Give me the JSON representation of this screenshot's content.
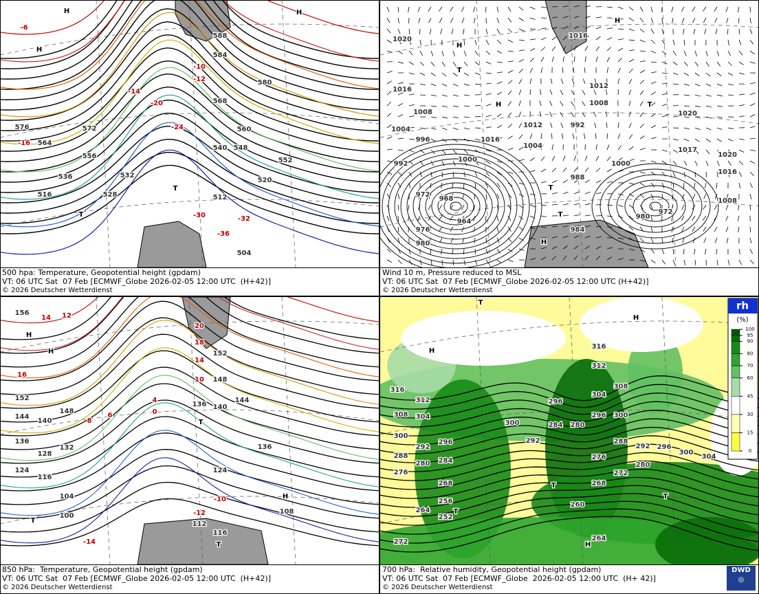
{
  "panels": [
    {
      "caption": {
        "line1": "500 hpa: Temperature, Geopotential height (gpdam)",
        "line2": "VT: 06 UTC Sat  07 Feb [ECMWF_Globe 2026-02-05 12:00 UTC  (H+42)]",
        "copyright": "© 2026 Deutscher Wetterdienst"
      },
      "height_labels": [
        "588",
        "584",
        "580",
        "576",
        "572",
        "568",
        "564",
        "560",
        "556",
        "552",
        "548",
        "540",
        "536",
        "532",
        "528",
        "520",
        "516",
        "512",
        "504"
      ],
      "temperature_labels": [
        "-10",
        "-12",
        "-20",
        "-24",
        "-30",
        "-32",
        "-36",
        "-6",
        "-14",
        "-16"
      ],
      "centers": [
        "H",
        "T",
        "T",
        "H",
        "H"
      ]
    },
    {
      "caption": {
        "line1": "Wind 10 m, Pressure reduced to MSL",
        "line2": "VT: 06 UTC Sat  07 Feb [ECMWF_Globe 2026-02-05 12:00 UTC (H+42)]",
        "copyright": "© 2026 Deutscher Wetterdienst"
      },
      "height_labels": [
        "1020",
        "1016",
        "1008",
        "1004",
        "996",
        "992",
        "972",
        "968",
        "964",
        "976",
        "980",
        "1000",
        "1016",
        "1012",
        "1004",
        "992",
        "988",
        "984",
        "1012",
        "1008",
        "1000",
        "972",
        "980",
        "1020",
        "1017",
        "1020",
        "1016",
        "1008",
        "1016"
      ],
      "temperature_labels": [],
      "centers": [
        "H",
        "T",
        "H",
        "T",
        "T",
        "H",
        "H",
        "T"
      ]
    },
    {
      "caption": {
        "line1": "850 hPa:  Temperature, Geopotential height (gpdam)",
        "line2": "VT: 06 UTC Sat  07 Feb [ECMWF_Globe 2026-02-05 12:00 UTC  (H+42)]",
        "copyright": "© 2026 Deutscher Wetterdienst"
      },
      "height_labels": [
        "156",
        "152",
        "148",
        "144",
        "140",
        "136",
        "132",
        "128",
        "124",
        "116",
        "104",
        "100",
        "152",
        "148",
        "144",
        "140",
        "136",
        "136",
        "124",
        "108",
        "112",
        "116"
      ],
      "temperature_labels": [
        "14",
        "12",
        "10",
        "16",
        "18",
        "20",
        "14",
        "8",
        "6",
        "4",
        "0",
        "-10",
        "-12",
        "-14"
      ],
      "centers": [
        "H",
        "H",
        "T",
        "T",
        "H",
        "T"
      ]
    },
    {
      "caption": {
        "line1": "700 hPa:  Relative humidity, Geopotential height (gpdam)",
        "line2": "VT: 06 UTC Sat  07 Feb [ECMWF_Globe  2026-02-05 12:00 UTC  (H+ 42)]",
        "copyright": "© 2026 Deutscher Wetterdienst"
      },
      "height_labels": [
        "316",
        "312",
        "308",
        "304",
        "300",
        "296",
        "292",
        "288",
        "284",
        "280",
        "276",
        "268",
        "256",
        "252",
        "264",
        "272",
        "300",
        "292",
        "284",
        "280",
        "276",
        "272",
        "268",
        "260",
        "264",
        "296",
        "304",
        "308",
        "312",
        "316",
        "300",
        "296",
        "288",
        "292",
        "296",
        "300",
        "304",
        "280"
      ],
      "temperature_labels": [],
      "centers": [
        "H",
        "H",
        "T",
        "T",
        "T",
        "H",
        "T"
      ]
    }
  ],
  "legend": {
    "title": "rh",
    "unit": "(%)",
    "ticks": [
      100,
      95,
      90,
      80,
      70,
      60,
      45,
      30,
      15,
      0
    ],
    "colors": [
      "#005a00",
      "#0a6e0a",
      "#178a17",
      "#2fa52f",
      "#63c063",
      "#a6dca6",
      "#ffffff",
      "#ffffb0",
      "#ffff40"
    ]
  },
  "logo": "DWD"
}
